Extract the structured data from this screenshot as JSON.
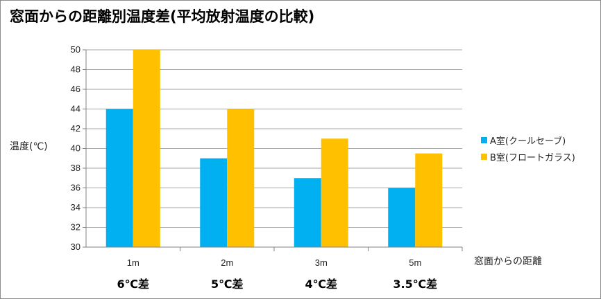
{
  "colors": {
    "seriesA": "#00b0f0",
    "seriesB": "#ffc000",
    "grid": "#a6a6a6",
    "axis": "#808080"
  },
  "chart_data": {
    "type": "bar",
    "title": "窓面からの距離別温度差(平均放射温度の比較)",
    "xlabel": "窓面からの距離",
    "ylabel": "温度(℃)",
    "categories": [
      "1m",
      "2m",
      "3m",
      "5m"
    ],
    "annotations": [
      "6℃差",
      "5℃差",
      "4℃差",
      "3.5℃差"
    ],
    "ylim": [
      30,
      50
    ],
    "yticks": [
      30,
      32,
      34,
      36,
      38,
      40,
      42,
      44,
      46,
      48,
      50
    ],
    "grid": true,
    "legend_position": "right",
    "series": [
      {
        "name": "A室(クールセーブ)",
        "values": [
          44,
          39,
          37,
          36
        ],
        "color": "#00b0f0"
      },
      {
        "name": "B室(フロートガラス)",
        "values": [
          50,
          44,
          41,
          39.5
        ],
        "color": "#ffc000"
      }
    ]
  }
}
